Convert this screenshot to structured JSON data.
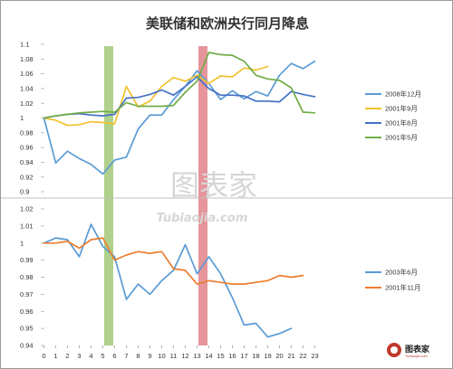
{
  "chart_data": {
    "title": "美联储和欧洲央行同月降息",
    "x_ticks": [
      "0",
      "1",
      "2",
      "3",
      "4",
      "5",
      "6",
      "7",
      "8",
      "9",
      "10",
      "11",
      "12",
      "13",
      "14",
      "15",
      "16",
      "17",
      "18",
      "19",
      "20",
      "21",
      "22",
      "23"
    ],
    "highlight_bands": [
      {
        "from": 5,
        "to": 6,
        "color": "#9bc56e"
      },
      {
        "from": 13,
        "to": 14,
        "color": "#e07a82"
      }
    ],
    "panels": [
      {
        "type": "line",
        "ylim": [
          0.9,
          1.1
        ],
        "y_ticks": [
          "0.9",
          "0.92",
          "0.94",
          "0.96",
          "0.98",
          "1",
          "1.02",
          "1.04",
          "1.06",
          "1.08",
          "1.1"
        ],
        "series": [
          {
            "name": "2008年12月",
            "color": "#5b9bd5",
            "values": [
              1.0,
              0.939,
              0.955,
              0.945,
              0.937,
              0.924,
              0.943,
              0.947,
              0.985,
              1.004,
              1.004,
              1.025,
              1.043,
              1.064,
              1.047,
              1.025,
              1.037,
              1.026,
              1.036,
              1.03,
              1.058,
              1.074,
              1.067,
              1.077
            ]
          },
          {
            "name": "2001年9月",
            "color": "#f2c12e",
            "values": [
              1.0,
              0.997,
              0.99,
              0.991,
              0.995,
              0.994,
              0.992,
              1.043,
              1.015,
              1.023,
              1.043,
              1.055,
              1.05,
              1.058,
              1.047,
              1.057,
              1.056,
              1.068,
              1.065,
              1.07
            ]
          },
          {
            "name": "2001年8月",
            "color": "#4472c4",
            "values": [
              1.0,
              1.003,
              1.005,
              1.006,
              1.004,
              1.003,
              1.005,
              1.027,
              1.028,
              1.032,
              1.038,
              1.031,
              1.043,
              1.056,
              1.04,
              1.031,
              1.031,
              1.03,
              1.023,
              1.023,
              1.022,
              1.036,
              1.032,
              1.029
            ]
          },
          {
            "name": "2001年5月",
            "color": "#70ad47",
            "values": [
              1.0,
              1.003,
              1.005,
              1.007,
              1.008,
              1.009,
              1.008,
              1.021,
              1.016,
              1.016,
              1.016,
              1.017,
              1.035,
              1.05,
              1.089,
              1.086,
              1.085,
              1.077,
              1.058,
              1.053,
              1.051,
              1.041,
              1.008,
              1.007
            ]
          }
        ]
      },
      {
        "type": "line",
        "ylim": [
          0.94,
          1.02
        ],
        "y_ticks": [
          "0.94",
          "0.95",
          "0.96",
          "0.97",
          "0.98",
          "0.99",
          "1",
          "1.01",
          "1.02"
        ],
        "series": [
          {
            "name": "2003年6月",
            "color": "#5b9bd5",
            "values": [
              1.0,
              1.003,
              1.002,
              0.992,
              1.011,
              0.998,
              0.992,
              0.967,
              0.976,
              0.97,
              0.978,
              0.984,
              0.999,
              0.982,
              0.992,
              0.982,
              0.968,
              0.952,
              0.953,
              0.945,
              0.947,
              0.95
            ]
          },
          {
            "name": "2001年11月",
            "color": "#ed7d31",
            "values": [
              1.0,
              1.0,
              1.001,
              0.997,
              1.002,
              1.003,
              0.99,
              0.993,
              0.995,
              0.994,
              0.995,
              0.985,
              0.984,
              0.976,
              0.978,
              0.977,
              0.976,
              0.976,
              0.977,
              0.978,
              0.981,
              0.98,
              0.981
            ]
          }
        ]
      }
    ]
  },
  "watermark": {
    "main": "图表家",
    "sub": "Tubiaojia.com"
  },
  "brand": {
    "name": "图表家",
    "sub": "Tubiaojia.com"
  }
}
